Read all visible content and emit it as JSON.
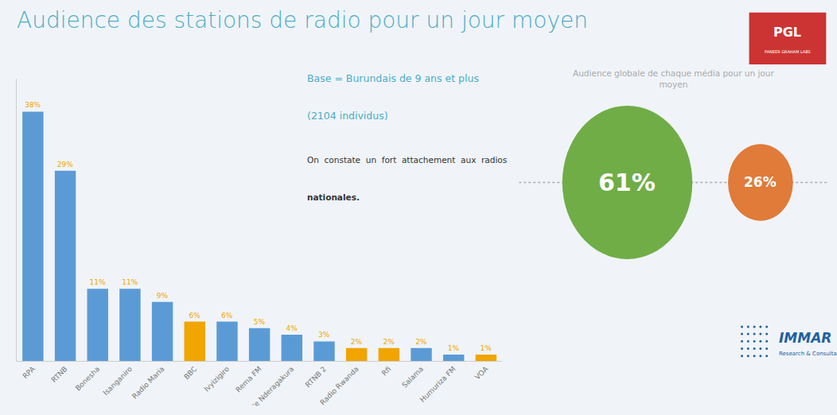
{
  "chart_data": {
    "type": "bar",
    "title": "Audience des stations de radio pour un jour moyen",
    "categories": [
      "RPA",
      "RTNB",
      "Bonesha",
      "Isanganiro",
      "Radio Maria",
      "BBC",
      "Ivyizigiro",
      "Rema FM",
      "'e Nderagakura",
      "RTNB 2",
      "Radio Rwanda",
      "Rfi",
      "Salama",
      "Humuriza FM",
      "VOA"
    ],
    "values": [
      38,
      29,
      11,
      11,
      9,
      6,
      6,
      5,
      4,
      3,
      2,
      2,
      2,
      1,
      1
    ],
    "value_labels": [
      "38%",
      "29%",
      "11%",
      "11%",
      "9%",
      "6%",
      "6%",
      "5%",
      "4%",
      "3%",
      "2%",
      "2%",
      "2%",
      "1%",
      "1%"
    ],
    "colors": [
      "#5b9bd5",
      "#5b9bd5",
      "#5b9bd5",
      "#5b9bd5",
      "#5b9bd5",
      "#f0a500",
      "#5b9bd5",
      "#5b9bd5",
      "#5b9bd5",
      "#5b9bd5",
      "#f0a500",
      "#f0a500",
      "#5b9bd5",
      "#5b9bd5",
      "#f0a500"
    ],
    "data_labels": true,
    "ylim": [
      0,
      43
    ],
    "tick_labels": "x",
    "grid": false,
    "annotations": [
      "Base = Burundais de 9 ans et plus",
      "(2104 individus)",
      "On  constate  un  fort  attachement  aux  radios",
      "nationales.",
      "Audience globale de chaque média pour un jour\nmoyen",
      "61%",
      "26%",
      "IMMAR",
      "Research & Consultancy",
      "PGL",
      "PANEER GRAHAM LABS"
    ]
  }
}
